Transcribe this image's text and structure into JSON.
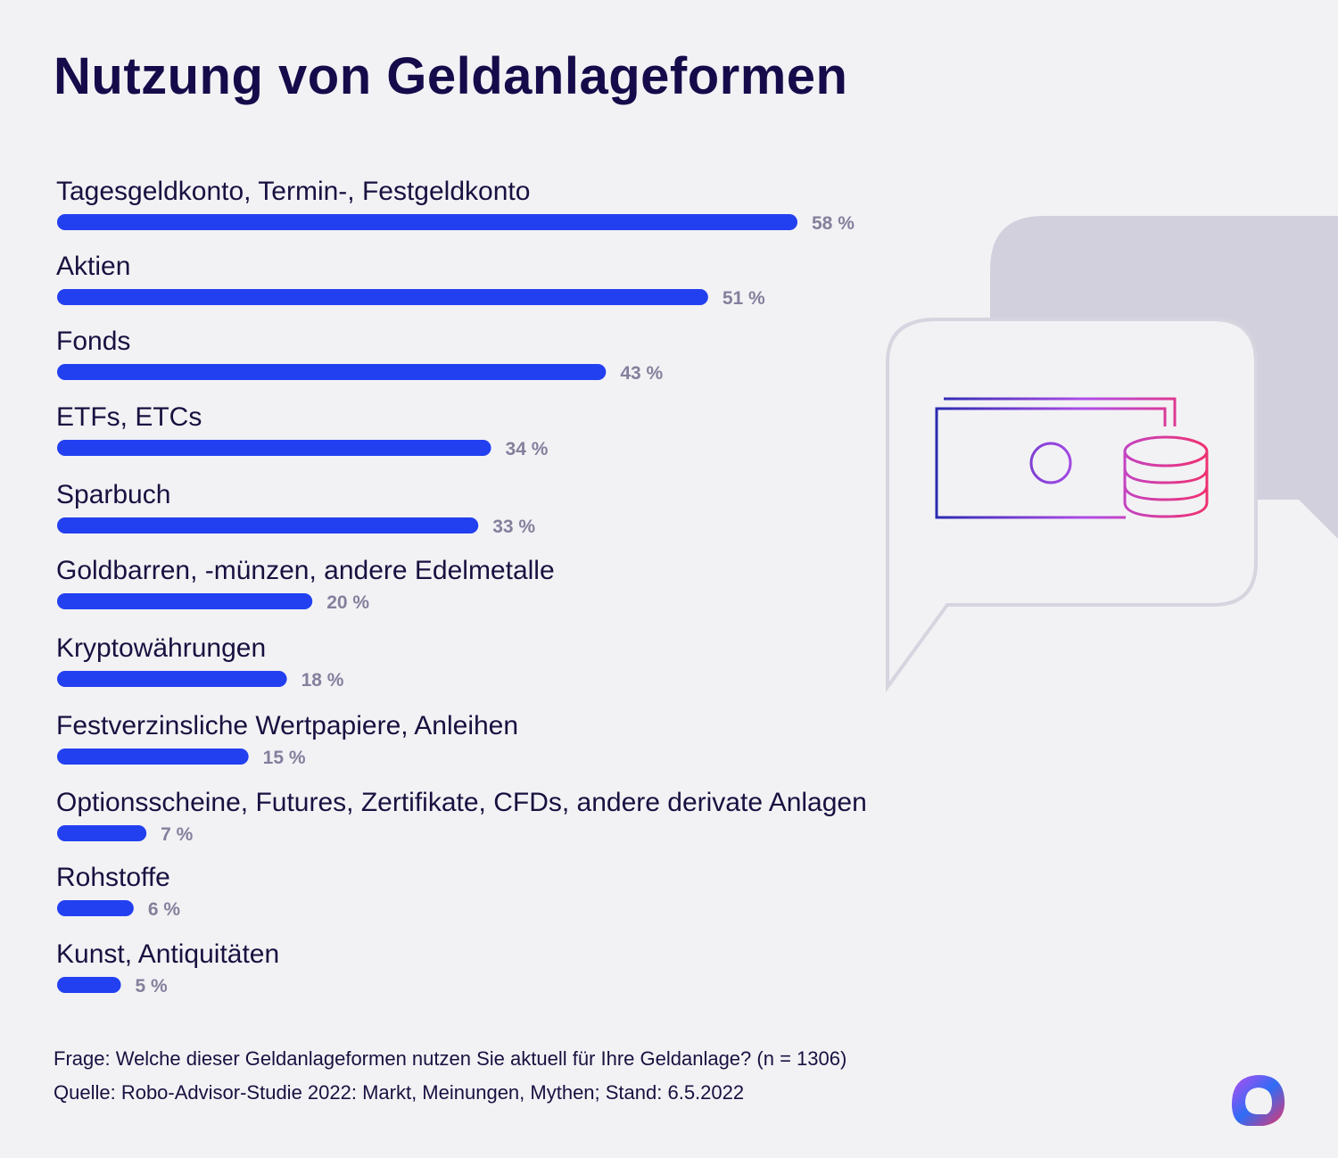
{
  "title": "Nutzung von Geldanlageformen",
  "footer": {
    "question": "Frage: Welche dieser Geldanlageformen nutzen Sie aktuell für Ihre Geldanlage? (n = 1306)",
    "source": "Quelle: Robo-Advisor-Studie 2022: Markt, Meinungen, Mythen; Stand: 6.5.2022"
  },
  "colors": {
    "bar": "#2340f0",
    "value_label": "#857f9c",
    "title": "#160b4a",
    "background": "#f2f2f5",
    "bubble_back": "#d2d0dc",
    "bubble_outline": "#d6d4de",
    "gradient_start": "#2a2ab0",
    "gradient_end": "#f0306e"
  },
  "icons": [
    "speech-bubble-icon",
    "banknote-icon",
    "coins-icon",
    "brand-logo-icon"
  ],
  "chart_data": {
    "type": "bar",
    "orientation": "horizontal",
    "unit": "%",
    "categories": [
      "Tagesgeldkonto, Termin-, Festgeldkonto",
      "Aktien",
      "Fonds",
      "ETFs, ETCs",
      "Sparbuch",
      "Goldbarren, -münzen, andere Edelmetalle",
      "Kryptowährungen",
      "Festverzinsliche Wertpapiere, Anleihen",
      "Optionsscheine, Futures, Zertifikate, CFDs, andere derivate Anlagen",
      "Rohstoffe",
      "Kunst, Antiquitäten"
    ],
    "values": [
      58,
      51,
      43,
      34,
      33,
      20,
      18,
      15,
      7,
      6,
      5
    ],
    "value_labels": [
      "58 %",
      "51 %",
      "43 %",
      "34 %",
      "33 %",
      "20 %",
      "18 %",
      "15 %",
      "7 %",
      "6 %",
      "5 %"
    ],
    "xlim": [
      0,
      58
    ],
    "grid": false,
    "legend": "none"
  }
}
